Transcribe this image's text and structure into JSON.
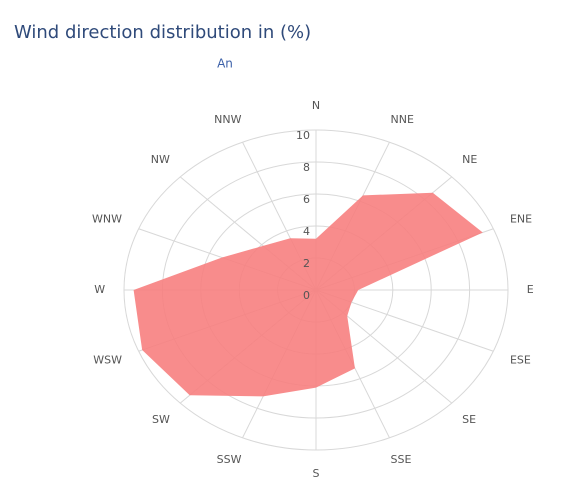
{
  "chart_data": {
    "type": "radar",
    "title": "Wind direction distribution in (%)",
    "subtitle": "An",
    "categories": [
      "N",
      "NNE",
      "NE",
      "ENE",
      "E",
      "ESE",
      "SE",
      "SSE",
      "S",
      "SSW",
      "SW",
      "WSW",
      "W",
      "WNW",
      "NW",
      "NNW"
    ],
    "values": [
      3.2,
      6.4,
      8.6,
      9.4,
      2.2,
      2.0,
      2.3,
      5.3,
      6.1,
      7.2,
      9.3,
      9.8,
      9.5,
      5.3,
      3.9,
      3.5
    ],
    "color": "#f77f7f",
    "ylim": [
      0,
      10
    ],
    "yticks": [
      0,
      2,
      4,
      6,
      8,
      10
    ],
    "grid": true
  }
}
